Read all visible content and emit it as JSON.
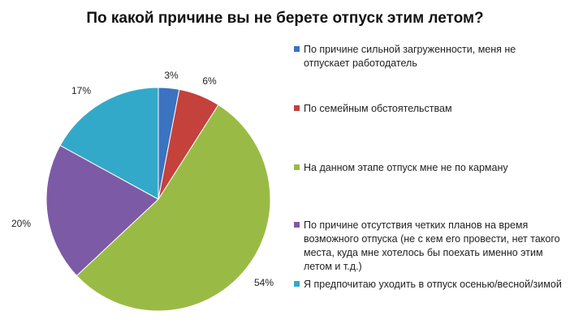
{
  "chart_data": {
    "type": "pie",
    "title": "По какой причине вы не берете отпуск этим летом?",
    "slices": [
      {
        "label": "По причине сильной загруженности, меня не отпускает работодатель",
        "value": 3,
        "display": "3%",
        "color": "#3b73c0"
      },
      {
        "label": "По семейным обстоятельствам",
        "value": 6,
        "display": "6%",
        "color": "#c4413c"
      },
      {
        "label": "На данном этапе отпуск мне не по карману",
        "value": 54,
        "display": "54%",
        "color": "#99bb45"
      },
      {
        "label": "По причине отсутствия четких планов на время возможного отпуска (не с кем его провести, нет такого места, куда мне хотелось бы поехать именно этим летом и т.д.)",
        "value": 20,
        "display": "20%",
        "color": "#7d5aa5"
      },
      {
        "label": "Я предпочитаю уходить в отпуск осенью/весной/зимой",
        "value": 17,
        "display": "17%",
        "color": "#33a9c9"
      }
    ],
    "legend_position": "right"
  }
}
